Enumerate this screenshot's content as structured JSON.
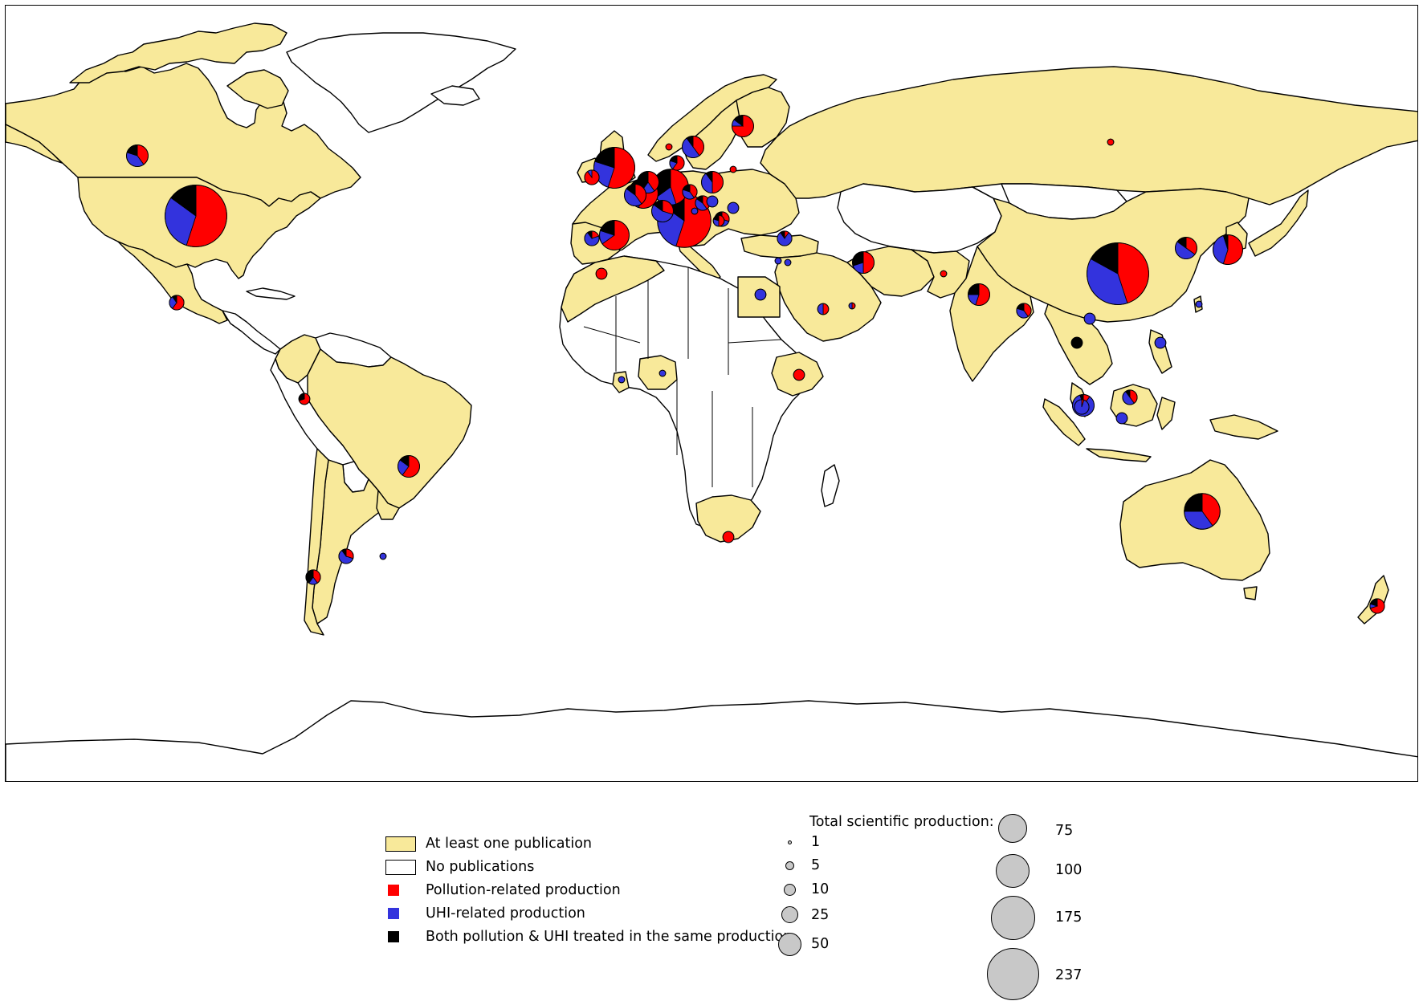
{
  "legend": {
    "items": [
      {
        "label": "At least one publication",
        "color": "#f8e99a",
        "kind": "area"
      },
      {
        "label": "No publications",
        "color": "#ffffff",
        "kind": "area"
      },
      {
        "label": "Pollution-related production",
        "color": "#ff0000",
        "kind": "point"
      },
      {
        "label": "UHI-related production",
        "color": "#3333dd",
        "kind": "point"
      },
      {
        "label": "Both pollution & UHI treated in the same production",
        "color": "#000000",
        "kind": "point"
      }
    ]
  },
  "size_legend": {
    "title": "Total scientific production:",
    "values": [
      "1",
      "5",
      "10",
      "25",
      "50",
      "75",
      "100",
      "175",
      "237"
    ]
  },
  "colors": {
    "land_with_pubs": "#f8e99a",
    "land_without_pubs": "#ffffff",
    "pollution": "#ff0000",
    "uhi": "#3333dd",
    "both": "#000000",
    "size_circle": "#c8c8c8"
  },
  "pies": [
    {
      "region": "United States",
      "total": 237,
      "pollution": 0.55,
      "uhi": 0.3,
      "both": 0.15
    },
    {
      "region": "China",
      "total": 237,
      "pollution": 0.45,
      "uhi": 0.38,
      "both": 0.17
    },
    {
      "region": "Italy",
      "total": 175,
      "pollution": 0.55,
      "uhi": 0.3,
      "both": 0.15
    },
    {
      "region": "United Kingdom",
      "total": 100,
      "pollution": 0.55,
      "uhi": 0.25,
      "both": 0.2
    },
    {
      "region": "Australia",
      "total": 75,
      "pollution": 0.4,
      "uhi": 0.35,
      "both": 0.25
    },
    {
      "region": "Germany",
      "total": 75,
      "pollution": 0.45,
      "uhi": 0.2,
      "both": 0.35
    },
    {
      "region": "France",
      "total": 50,
      "pollution": 0.55,
      "uhi": 0.3,
      "both": 0.15
    },
    {
      "region": "Spain",
      "total": 50,
      "pollution": 0.65,
      "uhi": 0.15,
      "both": 0.2
    },
    {
      "region": "Japan",
      "total": 50,
      "pollution": 0.55,
      "uhi": 0.4,
      "both": 0.05
    },
    {
      "region": "South Korea",
      "total": 25,
      "pollution": 0.35,
      "uhi": 0.5,
      "both": 0.15
    },
    {
      "region": "Netherlands",
      "total": 25,
      "pollution": 0.4,
      "uhi": 0.2,
      "both": 0.4
    },
    {
      "region": "Belgium",
      "total": 25,
      "pollution": 0.4,
      "uhi": 0.45,
      "both": 0.15
    },
    {
      "region": "Iran",
      "total": 25,
      "pollution": 0.5,
      "uhi": 0.2,
      "both": 0.3
    },
    {
      "region": "India",
      "total": 25,
      "pollution": 0.55,
      "uhi": 0.2,
      "both": 0.25
    },
    {
      "region": "Finland",
      "total": 25,
      "pollution": 0.75,
      "uhi": 0.1,
      "both": 0.15
    },
    {
      "region": "Poland",
      "total": 25,
      "pollution": 0.5,
      "uhi": 0.4,
      "both": 0.1
    },
    {
      "region": "Sweden",
      "total": 25,
      "pollution": 0.4,
      "uhi": 0.5,
      "both": 0.1
    },
    {
      "region": "Brazil",
      "total": 25,
      "pollution": 0.6,
      "uhi": 0.25,
      "both": 0.15
    },
    {
      "region": "Canada",
      "total": 25,
      "pollution": 0.4,
      "uhi": 0.4,
      "both": 0.2
    },
    {
      "region": "Malaysia",
      "total": 25,
      "pollution": 0.1,
      "uhi": 0.85,
      "both": 0.05
    },
    {
      "region": "Switzerland",
      "total": 25,
      "pollution": 0.3,
      "uhi": 0.55,
      "both": 0.15
    },
    {
      "region": "Czech Republic",
      "total": 10,
      "pollution": 0.4,
      "uhi": 0.4,
      "both": 0.2
    },
    {
      "region": "Austria",
      "total": 10,
      "pollution": 0.4,
      "uhi": 0.45,
      "both": 0.15
    },
    {
      "region": "Portugal",
      "total": 10,
      "pollution": 0.2,
      "uhi": 0.7,
      "both": 0.1
    },
    {
      "region": "Greece",
      "total": 10,
      "pollution": 0.3,
      "uhi": 0.4,
      "both": 0.3
    },
    {
      "region": "Turkey",
      "total": 10,
      "pollution": 0.1,
      "uhi": 0.8,
      "both": 0.1
    },
    {
      "region": "Bangladesh",
      "total": 10,
      "pollution": 0.4,
      "uhi": 0.4,
      "both": 0.2
    },
    {
      "region": "Argentina",
      "total": 10,
      "pollution": 0.3,
      "uhi": 0.6,
      "both": 0.1
    },
    {
      "region": "Chile",
      "total": 10,
      "pollution": 0.4,
      "uhi": 0.2,
      "both": 0.4
    },
    {
      "region": "New Zealand",
      "total": 10,
      "pollution": 0.7,
      "uhi": 0.1,
      "both": 0.2
    },
    {
      "region": "Singapore",
      "total": 10,
      "pollution": 0.05,
      "uhi": 0.95,
      "both": 0.0
    },
    {
      "region": "Brunei",
      "total": 10,
      "pollution": 0.4,
      "uhi": 0.5,
      "both": 0.1
    },
    {
      "region": "Ireland",
      "total": 10,
      "pollution": 0.9,
      "uhi": 0.1,
      "both": 0.0
    },
    {
      "region": "Denmark",
      "total": 10,
      "pollution": 0.6,
      "uhi": 0.2,
      "both": 0.2
    },
    {
      "region": "Mexico",
      "total": 10,
      "pollution": 0.6,
      "uhi": 0.3,
      "both": 0.1
    },
    {
      "region": "Ethiopia",
      "total": 5,
      "pollution": 1.0,
      "uhi": 0.0,
      "both": 0.0
    },
    {
      "region": "Egypt",
      "total": 5,
      "pollution": 0.0,
      "uhi": 1.0,
      "both": 0.0
    },
    {
      "region": "Saudi Arabia",
      "total": 5,
      "pollution": 0.5,
      "uhi": 0.5,
      "both": 0.0
    },
    {
      "region": "Colombia",
      "total": 5,
      "pollution": 0.7,
      "uhi": 0.0,
      "both": 0.3
    },
    {
      "region": "South Africa",
      "total": 5,
      "pollution": 1.0,
      "uhi": 0.0,
      "both": 0.0
    },
    {
      "region": "Morocco",
      "total": 5,
      "pollution": 1.0,
      "uhi": 0.0,
      "both": 0.0
    },
    {
      "region": "Thailand",
      "total": 5,
      "pollution": 0.0,
      "uhi": 0.0,
      "both": 1.0
    },
    {
      "region": "Vietnam",
      "total": 5,
      "pollution": 0.0,
      "uhi": 1.0,
      "both": 0.0
    },
    {
      "region": "Indonesia",
      "total": 5,
      "pollution": 0.0,
      "uhi": 1.0,
      "both": 0.0
    },
    {
      "region": "Philippines",
      "total": 5,
      "pollution": 0.0,
      "uhi": 1.0,
      "both": 0.0
    },
    {
      "region": "Romania",
      "total": 5,
      "pollution": 0.0,
      "uhi": 1.0,
      "both": 0.0
    },
    {
      "region": "Hungary",
      "total": 5,
      "pollution": 0.0,
      "uhi": 1.0,
      "both": 0.0
    },
    {
      "region": "Serbia",
      "total": 5,
      "pollution": 0.5,
      "uhi": 0.3,
      "both": 0.2
    },
    {
      "region": "Russia",
      "total": 1,
      "pollution": 1.0,
      "uhi": 0.0,
      "both": 0.0
    },
    {
      "region": "Pakistan",
      "total": 1,
      "pollution": 1.0,
      "uhi": 0.0,
      "both": 0.0
    },
    {
      "region": "Nigeria",
      "total": 1,
      "pollution": 0.0,
      "uhi": 1.0,
      "both": 0.0
    },
    {
      "region": "Ghana",
      "total": 1,
      "pollution": 0.0,
      "uhi": 1.0,
      "both": 0.0
    },
    {
      "region": "Uruguay",
      "total": 1,
      "pollution": 0.0,
      "uhi": 1.0,
      "both": 0.0
    },
    {
      "region": "Latvia",
      "total": 1,
      "pollution": 1.0,
      "uhi": 0.0,
      "both": 0.0
    },
    {
      "region": "Norway",
      "total": 1,
      "pollution": 1.0,
      "uhi": 0.0,
      "both": 0.0
    },
    {
      "region": "Slovenia",
      "total": 1,
      "pollution": 0.0,
      "uhi": 1.0,
      "both": 0.0
    },
    {
      "region": "Israel",
      "total": 1,
      "pollution": 0.0,
      "uhi": 1.0,
      "both": 0.0
    },
    {
      "region": "Jordan",
      "total": 1,
      "pollution": 0.0,
      "uhi": 1.0,
      "both": 0.0
    },
    {
      "region": "Qatar",
      "total": 1,
      "pollution": 0.5,
      "uhi": 0.5,
      "both": 0.0
    },
    {
      "region": "Taiwan",
      "total": 1,
      "pollution": 0.0,
      "uhi": 1.0,
      "both": 0.0
    }
  ]
}
